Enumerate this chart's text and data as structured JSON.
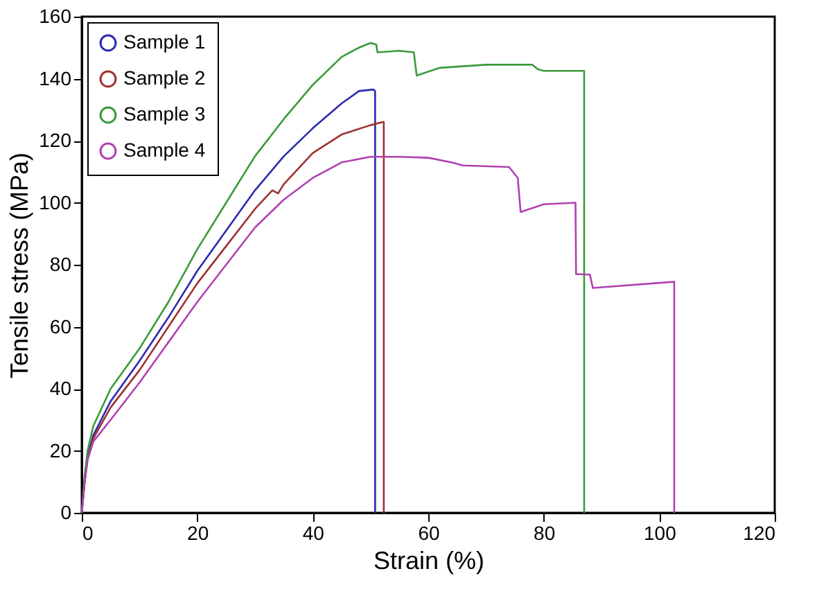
{
  "chart_data": {
    "type": "line",
    "xlabel": "Strain (%)",
    "ylabel": "Tensile stress (MPa)",
    "xlim": [
      0,
      120
    ],
    "xticks": [
      0,
      20,
      40,
      60,
      80,
      100,
      120
    ],
    "ylim": [
      0,
      160
    ],
    "yticks": [
      0,
      20,
      40,
      60,
      80,
      100,
      120,
      140,
      160
    ],
    "grid": false,
    "legend": "top left",
    "marker": "none",
    "line_style": "solid",
    "series": [
      {
        "name": "Sample 1",
        "color": "#2a2ab0",
        "x": [
          0,
          0.5,
          1,
          2,
          5,
          10,
          15,
          20,
          25,
          30,
          35,
          40,
          45,
          48,
          50.5,
          50.8,
          50.8
        ],
        "values": [
          0,
          10,
          18,
          25,
          36,
          49,
          63,
          78,
          91,
          104,
          115,
          124,
          132,
          136,
          136.5,
          136,
          0
        ]
      },
      {
        "name": "Sample 2",
        "color": "#a03030",
        "x": [
          0,
          0.5,
          1,
          2,
          5,
          10,
          15,
          20,
          25,
          30,
          33,
          34,
          35,
          40,
          45,
          50,
          52,
          52.3,
          52.3
        ],
        "values": [
          0,
          10,
          17,
          24,
          34,
          46,
          60,
          74,
          86,
          98,
          104,
          103,
          106,
          116,
          122,
          125,
          126,
          126,
          0
        ]
      },
      {
        "name": "Sample 3",
        "color": "#3a9a3a",
        "x": [
          0,
          0.5,
          1,
          2,
          5,
          10,
          15,
          20,
          25,
          30,
          35,
          40,
          45,
          48,
          50,
          51,
          51.2,
          55,
          57.5,
          58,
          62,
          70,
          78,
          79,
          80,
          86.8,
          87,
          87
        ],
        "values": [
          0,
          12,
          20,
          28,
          40,
          53,
          68,
          85,
          100,
          115,
          127,
          138,
          147,
          150,
          151.5,
          151,
          148.5,
          149,
          148.5,
          141,
          143.5,
          144.5,
          144.5,
          143,
          142.5,
          142.5,
          142.5,
          0
        ]
      },
      {
        "name": "Sample 4",
        "color": "#b040b0",
        "x": [
          0,
          0.5,
          1,
          2,
          5,
          10,
          15,
          20,
          25,
          30,
          35,
          40,
          45,
          50,
          55,
          60,
          64,
          66,
          74,
          75.5,
          76,
          80,
          85.5,
          85.6,
          88,
          88.5,
          102.5,
          102.6,
          102.6
        ],
        "values": [
          0,
          10,
          17,
          23,
          30,
          42,
          55,
          68,
          80,
          92,
          101,
          108,
          113,
          114.8,
          114.8,
          114.5,
          113,
          112,
          111.5,
          108,
          97,
          99.5,
          100,
          77,
          76.8,
          72.5,
          74.5,
          74.5,
          0
        ]
      }
    ]
  }
}
